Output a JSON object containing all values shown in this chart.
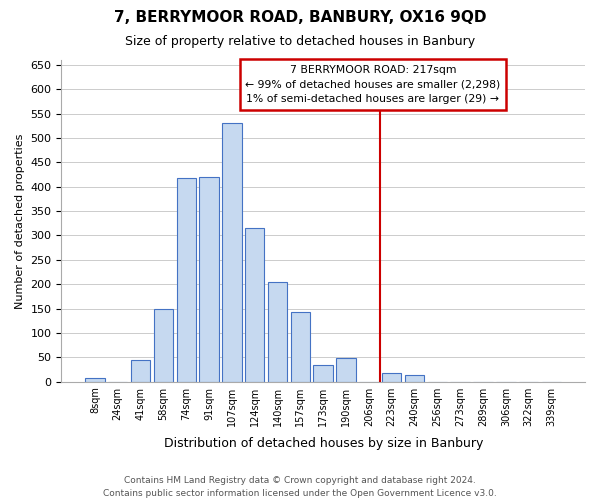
{
  "title": "7, BERRYMOOR ROAD, BANBURY, OX16 9QD",
  "subtitle": "Size of property relative to detached houses in Banbury",
  "xlabel": "Distribution of detached houses by size in Banbury",
  "ylabel": "Number of detached properties",
  "bar_labels": [
    "8sqm",
    "24sqm",
    "41sqm",
    "58sqm",
    "74sqm",
    "91sqm",
    "107sqm",
    "124sqm",
    "140sqm",
    "157sqm",
    "173sqm",
    "190sqm",
    "206sqm",
    "223sqm",
    "240sqm",
    "256sqm",
    "273sqm",
    "289sqm",
    "306sqm",
    "322sqm",
    "339sqm"
  ],
  "bar_values": [
    8,
    0,
    44,
    150,
    418,
    420,
    530,
    316,
    205,
    143,
    35,
    49,
    0,
    17,
    14,
    0,
    0,
    0,
    0,
    0,
    0
  ],
  "bar_color": "#c6d9f0",
  "bar_edge_color": "#4472c4",
  "vline_x_index": 13,
  "vline_color": "#cc0000",
  "ylim": [
    0,
    660
  ],
  "yticks": [
    0,
    50,
    100,
    150,
    200,
    250,
    300,
    350,
    400,
    450,
    500,
    550,
    600,
    650
  ],
  "annotation_title": "7 BERRYMOOR ROAD: 217sqm",
  "annotation_line1": "← 99% of detached houses are smaller (2,298)",
  "annotation_line2": "1% of semi-detached houses are larger (29) →",
  "annotation_box_color": "#cc0000",
  "footer_line1": "Contains HM Land Registry data © Crown copyright and database right 2024.",
  "footer_line2": "Contains public sector information licensed under the Open Government Licence v3.0.",
  "bg_color": "#ffffff",
  "grid_color": "#cccccc"
}
